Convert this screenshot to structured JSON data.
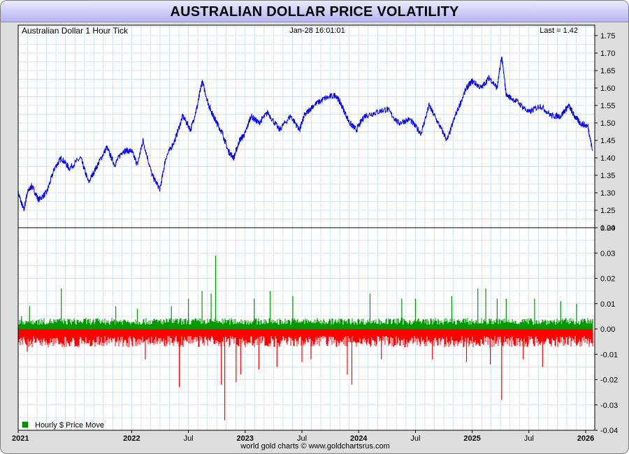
{
  "title": "AUSTRALIAN DOLLAR PRICE VOLATILITY",
  "footer": "world gold charts © www.goldchartsrus.com",
  "chart_data": [
    {
      "type": "line",
      "title": "Australian Dollar 1 Hour Tick",
      "timestamp": "Jan-28  16:01:01",
      "last_label": "Last = 1.42",
      "color": "#0000ee",
      "x_labels": [
        "2021",
        "2022",
        "Jul",
        "2023",
        "Jul",
        "2024",
        "Jul",
        "2025",
        "Jul",
        "2026"
      ],
      "x_label_positions_years": [
        2021.0,
        2022.0,
        2022.5,
        2023.0,
        2023.5,
        2024.0,
        2024.5,
        2025.0,
        2025.5,
        2026.0
      ],
      "xlim": [
        2021.0,
        2026.08
      ],
      "ylim": [
        1.2,
        1.78
      ],
      "y_ticks": [
        "1.20",
        "1.25",
        "1.30",
        "1.35",
        "1.40",
        "1.45",
        "1.50",
        "1.55",
        "1.60",
        "1.65",
        "1.70",
        "1.75"
      ],
      "x": [
        2021.0,
        2021.05,
        2021.08,
        2021.12,
        2021.18,
        2021.25,
        2021.32,
        2021.38,
        2021.45,
        2021.55,
        2021.62,
        2021.7,
        2021.78,
        2021.85,
        2021.92,
        2022.0,
        2022.05,
        2022.1,
        2022.18,
        2022.25,
        2022.3,
        2022.38,
        2022.45,
        2022.52,
        2022.58,
        2022.62,
        2022.68,
        2022.72,
        2022.75,
        2022.8,
        2022.85,
        2022.9,
        2022.95,
        2023.0,
        2023.05,
        2023.12,
        2023.2,
        2023.3,
        2023.4,
        2023.48,
        2023.52,
        2023.6,
        2023.7,
        2023.8,
        2023.85,
        2023.92,
        2023.98,
        2024.05,
        2024.15,
        2024.25,
        2024.35,
        2024.45,
        2024.55,
        2024.62,
        2024.7,
        2024.78,
        2024.85,
        2024.95,
        2025.0,
        2025.08,
        2025.15,
        2025.22,
        2025.26,
        2025.3,
        2025.4,
        2025.5,
        2025.6,
        2025.7,
        2025.78,
        2025.85,
        2025.9,
        2025.95,
        2026.02,
        2026.06
      ],
      "y": [
        1.3,
        1.25,
        1.3,
        1.32,
        1.28,
        1.3,
        1.37,
        1.4,
        1.37,
        1.4,
        1.33,
        1.38,
        1.43,
        1.38,
        1.42,
        1.42,
        1.38,
        1.45,
        1.35,
        1.31,
        1.4,
        1.45,
        1.52,
        1.48,
        1.55,
        1.62,
        1.55,
        1.52,
        1.5,
        1.47,
        1.42,
        1.4,
        1.45,
        1.47,
        1.52,
        1.5,
        1.53,
        1.48,
        1.52,
        1.48,
        1.52,
        1.55,
        1.57,
        1.58,
        1.55,
        1.5,
        1.48,
        1.52,
        1.53,
        1.54,
        1.5,
        1.51,
        1.47,
        1.55,
        1.5,
        1.45,
        1.52,
        1.6,
        1.62,
        1.6,
        1.63,
        1.6,
        1.69,
        1.58,
        1.56,
        1.53,
        1.55,
        1.52,
        1.52,
        1.55,
        1.52,
        1.5,
        1.49,
        1.42
      ]
    },
    {
      "type": "bar",
      "legend": "Hourly $ Price Move",
      "legend_position": "bottom-left",
      "up_color": "#009900",
      "down_color": "#ff0000",
      "ylim": [
        -0.04,
        0.04
      ],
      "y_ticks": [
        "-0.04",
        "-0.03",
        "-0.02",
        "-0.01",
        "0.00",
        "0.01",
        "0.02",
        "0.03",
        "0.04"
      ],
      "typical_band_up": 0.003,
      "typical_band_down": -0.005,
      "spikes": [
        {
          "x": 2021.03,
          "value": 0.005
        },
        {
          "x": 2021.08,
          "value": -0.009
        },
        {
          "x": 2021.1,
          "value": 0.009
        },
        {
          "x": 2021.38,
          "value": 0.016
        },
        {
          "x": 2021.5,
          "value": -0.007
        },
        {
          "x": 2021.86,
          "value": 0.009
        },
        {
          "x": 2022.05,
          "value": 0.008
        },
        {
          "x": 2022.12,
          "value": -0.012
        },
        {
          "x": 2022.35,
          "value": 0.009
        },
        {
          "x": 2022.42,
          "value": -0.023
        },
        {
          "x": 2022.5,
          "value": 0.012
        },
        {
          "x": 2022.62,
          "value": 0.015
        },
        {
          "x": 2022.7,
          "value": 0.014
        },
        {
          "x": 2022.74,
          "value": 0.029
        },
        {
          "x": 2022.79,
          "value": -0.022
        },
        {
          "x": 2022.82,
          "value": -0.036
        },
        {
          "x": 2022.92,
          "value": -0.021
        },
        {
          "x": 2022.96,
          "value": -0.018
        },
        {
          "x": 2023.08,
          "value": 0.012
        },
        {
          "x": 2023.12,
          "value": -0.016
        },
        {
          "x": 2023.22,
          "value": 0.015
        },
        {
          "x": 2023.28,
          "value": -0.015
        },
        {
          "x": 2023.42,
          "value": 0.013
        },
        {
          "x": 2023.5,
          "value": -0.013
        },
        {
          "x": 2023.58,
          "value": -0.012
        },
        {
          "x": 2023.9,
          "value": -0.018
        },
        {
          "x": 2023.94,
          "value": -0.022
        },
        {
          "x": 2024.1,
          "value": 0.014
        },
        {
          "x": 2024.2,
          "value": -0.012
        },
        {
          "x": 2024.38,
          "value": 0.012
        },
        {
          "x": 2024.5,
          "value": 0.012
        },
        {
          "x": 2024.65,
          "value": -0.012
        },
        {
          "x": 2024.82,
          "value": 0.013
        },
        {
          "x": 2024.95,
          "value": -0.013
        },
        {
          "x": 2025.05,
          "value": 0.016
        },
        {
          "x": 2025.12,
          "value": 0.016
        },
        {
          "x": 2025.16,
          "value": -0.014
        },
        {
          "x": 2025.22,
          "value": 0.012
        },
        {
          "x": 2025.26,
          "value": -0.028
        },
        {
          "x": 2025.3,
          "value": 0.012
        },
        {
          "x": 2025.45,
          "value": -0.012
        },
        {
          "x": 2025.55,
          "value": 0.012
        },
        {
          "x": 2025.62,
          "value": -0.015
        },
        {
          "x": 2025.78,
          "value": 0.011
        },
        {
          "x": 2025.92,
          "value": 0.01
        }
      ]
    }
  ]
}
